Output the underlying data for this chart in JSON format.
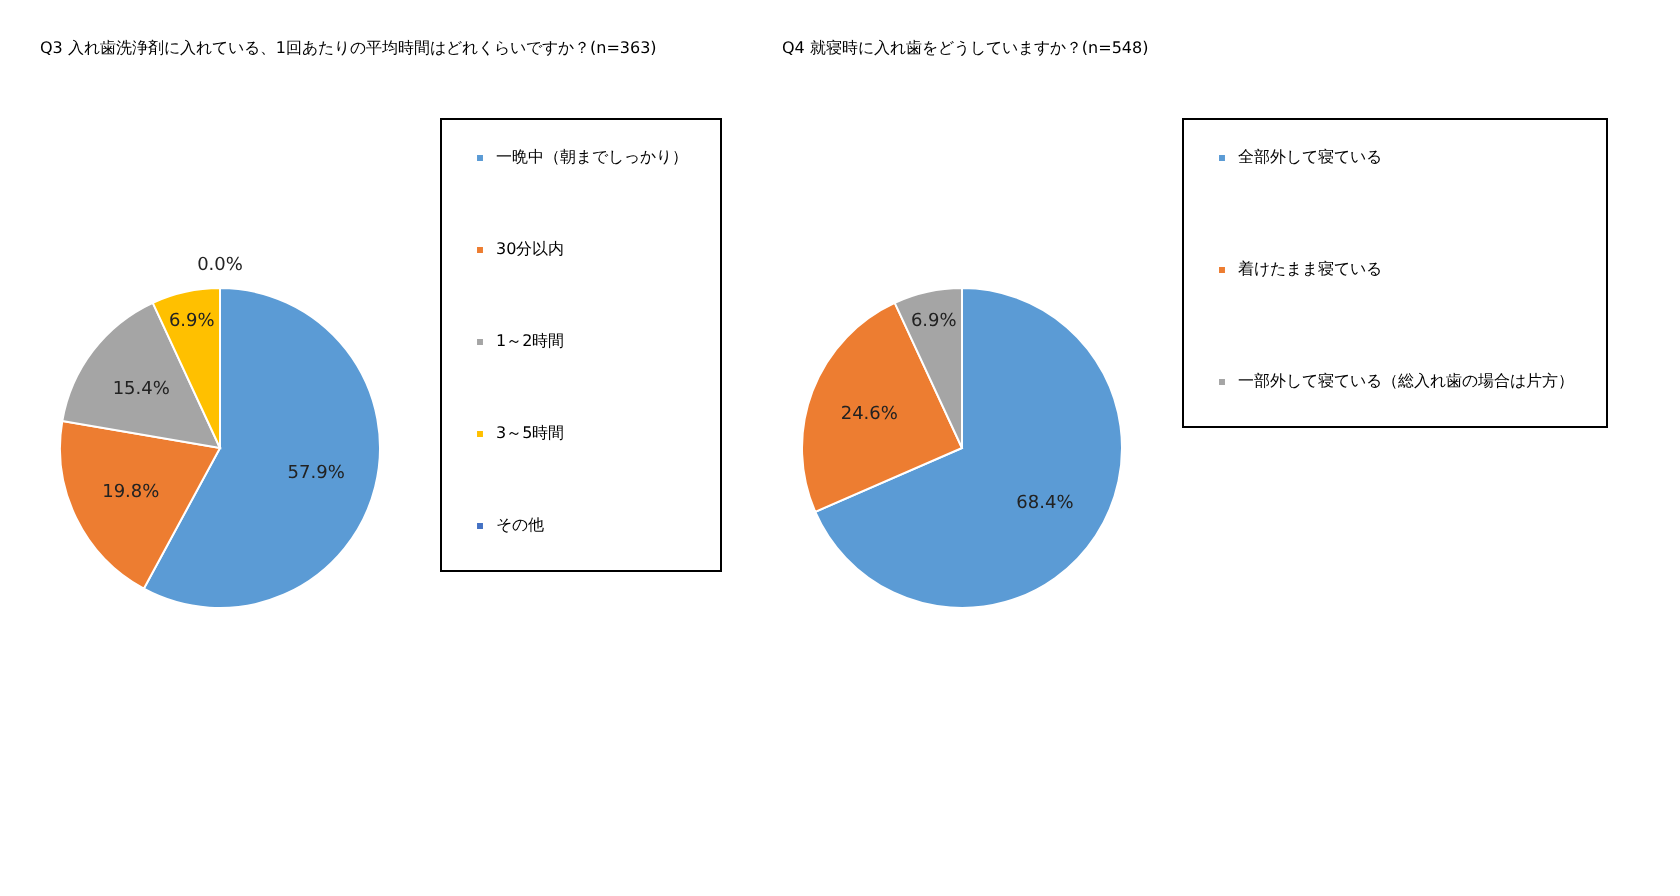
{
  "chart_data": [
    {
      "type": "pie",
      "title": "Q3 入れ歯洗浄剤に入れている、1回あたりの平均時間はどれくらいですか？(n=363)",
      "categories": [
        "一晩中（朝までしっかり）",
        "30分以内",
        "1～2時間",
        "3～5時間",
        "その他"
      ],
      "values": [
        57.9,
        19.8,
        15.4,
        6.9,
        0.0
      ],
      "colors": [
        "#5b9bd5",
        "#ed7d31",
        "#a5a5a5",
        "#ffc000",
        "#4472c4"
      ],
      "value_labels": [
        "57.9%",
        "19.8%",
        "15.4%",
        "6.9%",
        "0.0%"
      ],
      "legend": "right"
    },
    {
      "type": "pie",
      "title": "Q4 就寝時に入れ歯をどうしていますか？(n=548)",
      "categories": [
        "全部外して寝ている",
        "着けたまま寝ている",
        "一部外して寝ている（総入れ歯の場合は片方）"
      ],
      "values": [
        68.4,
        24.6,
        6.9
      ],
      "colors": [
        "#5b9bd5",
        "#ed7d31",
        "#a5a5a5"
      ],
      "value_labels": [
        "68.4%",
        "24.6%",
        "6.9%"
      ],
      "legend": "right"
    }
  ]
}
